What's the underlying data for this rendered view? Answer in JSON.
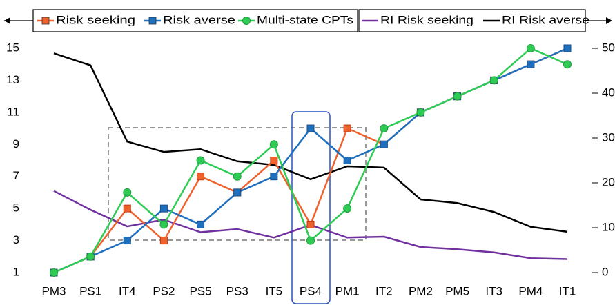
{
  "chart_data": {
    "type": "line",
    "categories": [
      "PM3",
      "PS1",
      "IT4",
      "PS2",
      "PS5",
      "PS3",
      "IT5",
      "PS4",
      "PM1",
      "IT2",
      "PM2",
      "PM5",
      "IT3",
      "PM4",
      "IT1"
    ],
    "series": [
      {
        "name": "Risk seeking",
        "color": "#f0622d",
        "marker": "square",
        "values": [
          1,
          2,
          5,
          3,
          7,
          6,
          8,
          4,
          10,
          9,
          11,
          12,
          13,
          14,
          15
        ]
      },
      {
        "name": "Risk averse",
        "color": "#1f6fbf",
        "marker": "square",
        "values": [
          1,
          2,
          3,
          5,
          4,
          6,
          7,
          10,
          8,
          9,
          11,
          12,
          13,
          14,
          15
        ]
      },
      {
        "name": "Multi-state CPTs",
        "color": "#2ecc55",
        "marker": "circle",
        "values": [
          1,
          2,
          6,
          4,
          8,
          7,
          9,
          3,
          5,
          10,
          11,
          12,
          13,
          15,
          14
        ]
      },
      {
        "name": "RI Risk seeking",
        "color": "#7030a0",
        "axis": "y2",
        "values": [
          18.2,
          14,
          10.3,
          11.8,
          9,
          9.7,
          7.8,
          10.6,
          7.8,
          8,
          5.7,
          5.2,
          4.5,
          3.2,
          3
        ]
      },
      {
        "name": "RI Risk averse",
        "color": "#000000",
        "axis": "y2",
        "values": [
          48.9,
          46.2,
          29.2,
          26.9,
          27.5,
          24.8,
          24,
          20.8,
          23.7,
          23.4,
          16.3,
          15.5,
          13.5,
          10.2,
          9.1
        ]
      }
    ],
    "ylim": [
      1,
      15
    ],
    "yticks": [
      1,
      3,
      5,
      7,
      9,
      11,
      13,
      15
    ],
    "y2lim": [
      0,
      50
    ],
    "y2ticks": [
      0,
      10,
      20,
      30,
      40,
      50
    ],
    "legend": "top"
  }
}
